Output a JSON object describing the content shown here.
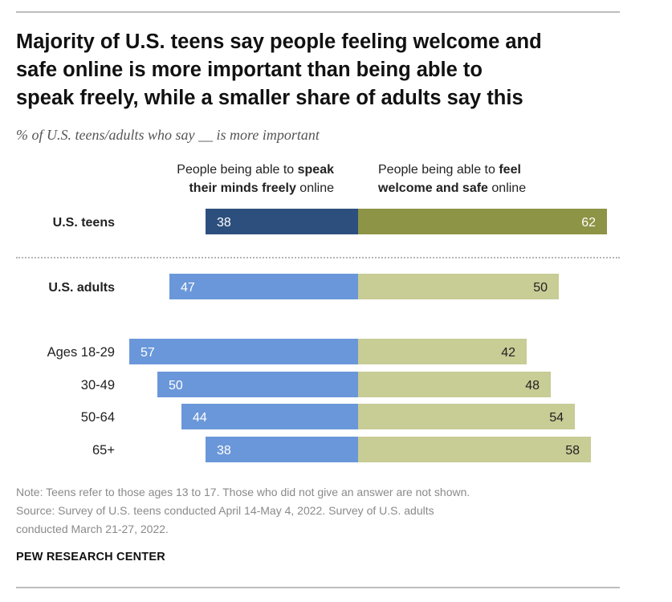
{
  "header": {
    "title_lines": [
      "Majority of U.S. teens say people feeling welcome and",
      "safe online is more important than being able to",
      "speak freely, while a smaller share of adults say this"
    ],
    "subtitle": "% of U.S. teens/adults who say __ is more important"
  },
  "columns": {
    "left": {
      "line1_plain": "People being able to ",
      "line1_bold": "speak",
      "line2_bold": "their minds freely",
      "line2_plain": " online"
    },
    "right": {
      "line1_plain": "People being able to ",
      "line1_bold": "feel",
      "line2_bold": "welcome and safe",
      "line2_plain": " online"
    }
  },
  "chart_data": {
    "type": "bar",
    "orientation": "horizontal-diverging",
    "categories": [
      "U.S. teens",
      "U.S. adults",
      "Ages 18-29",
      "30-49",
      "50-64",
      "65+"
    ],
    "series": [
      {
        "name": "People being able to speak their minds freely online",
        "values": [
          38,
          47,
          57,
          50,
          44,
          38
        ]
      },
      {
        "name": "People being able to feel welcome and safe online",
        "values": [
          62,
          50,
          42,
          48,
          54,
          58
        ]
      }
    ],
    "bold_categories": [
      "U.S. teens",
      "U.S. adults"
    ],
    "colors": {
      "teens_left": "#2d4f7d",
      "teens_right": "#8d9445",
      "adults_left": "#6a97d9",
      "adults_right": "#c8cc95",
      "label_on_left": "#ffffff",
      "label_on_teens_right": "#ffffff",
      "label_on_adults_right": "#222222"
    }
  },
  "footer": {
    "note_lines": [
      "Note: Teens refer to those ages 13 to 17. Those who did not give an answer are not shown.",
      "Source: Survey of U.S. teens conducted April 14-May 4, 2022. Survey of U.S. adults",
      "conducted March 21-27, 2022."
    ],
    "brand": "PEW RESEARCH CENTER"
  }
}
